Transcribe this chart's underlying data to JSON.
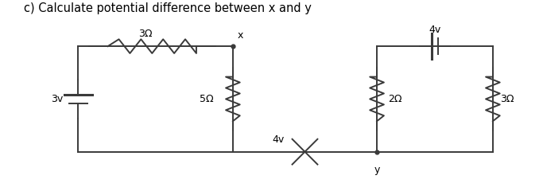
{
  "title": "c) Calculate potential difference between x and y",
  "title_fontsize": 10.5,
  "bg_color": "#ffffff",
  "line_color": "#3a3a3a",
  "lw": 1.4,
  "figsize": [
    6.83,
    2.4
  ],
  "dpi": 100,
  "left_circuit": {
    "blx": 0.85,
    "bly": 0.55,
    "tlx": 0.85,
    "tly": 2.05,
    "trx": 3.05,
    "try": 2.05,
    "brx": 3.05,
    "bry": 0.55
  },
  "right_circuit": {
    "blx": 5.1,
    "bly": 0.55,
    "tlx": 5.1,
    "tly": 2.05,
    "trx": 6.75,
    "try": 2.05,
    "brx": 6.75,
    "bry": 0.55
  },
  "labels": {
    "3v": "3v",
    "3ohm_top": "3Ω",
    "5ohm": "5Ω",
    "4v_mid": "4v",
    "4v_top": "4v",
    "2ohm": "2Ω",
    "3ohm_right": "3Ω",
    "x": "x",
    "y": "y"
  }
}
